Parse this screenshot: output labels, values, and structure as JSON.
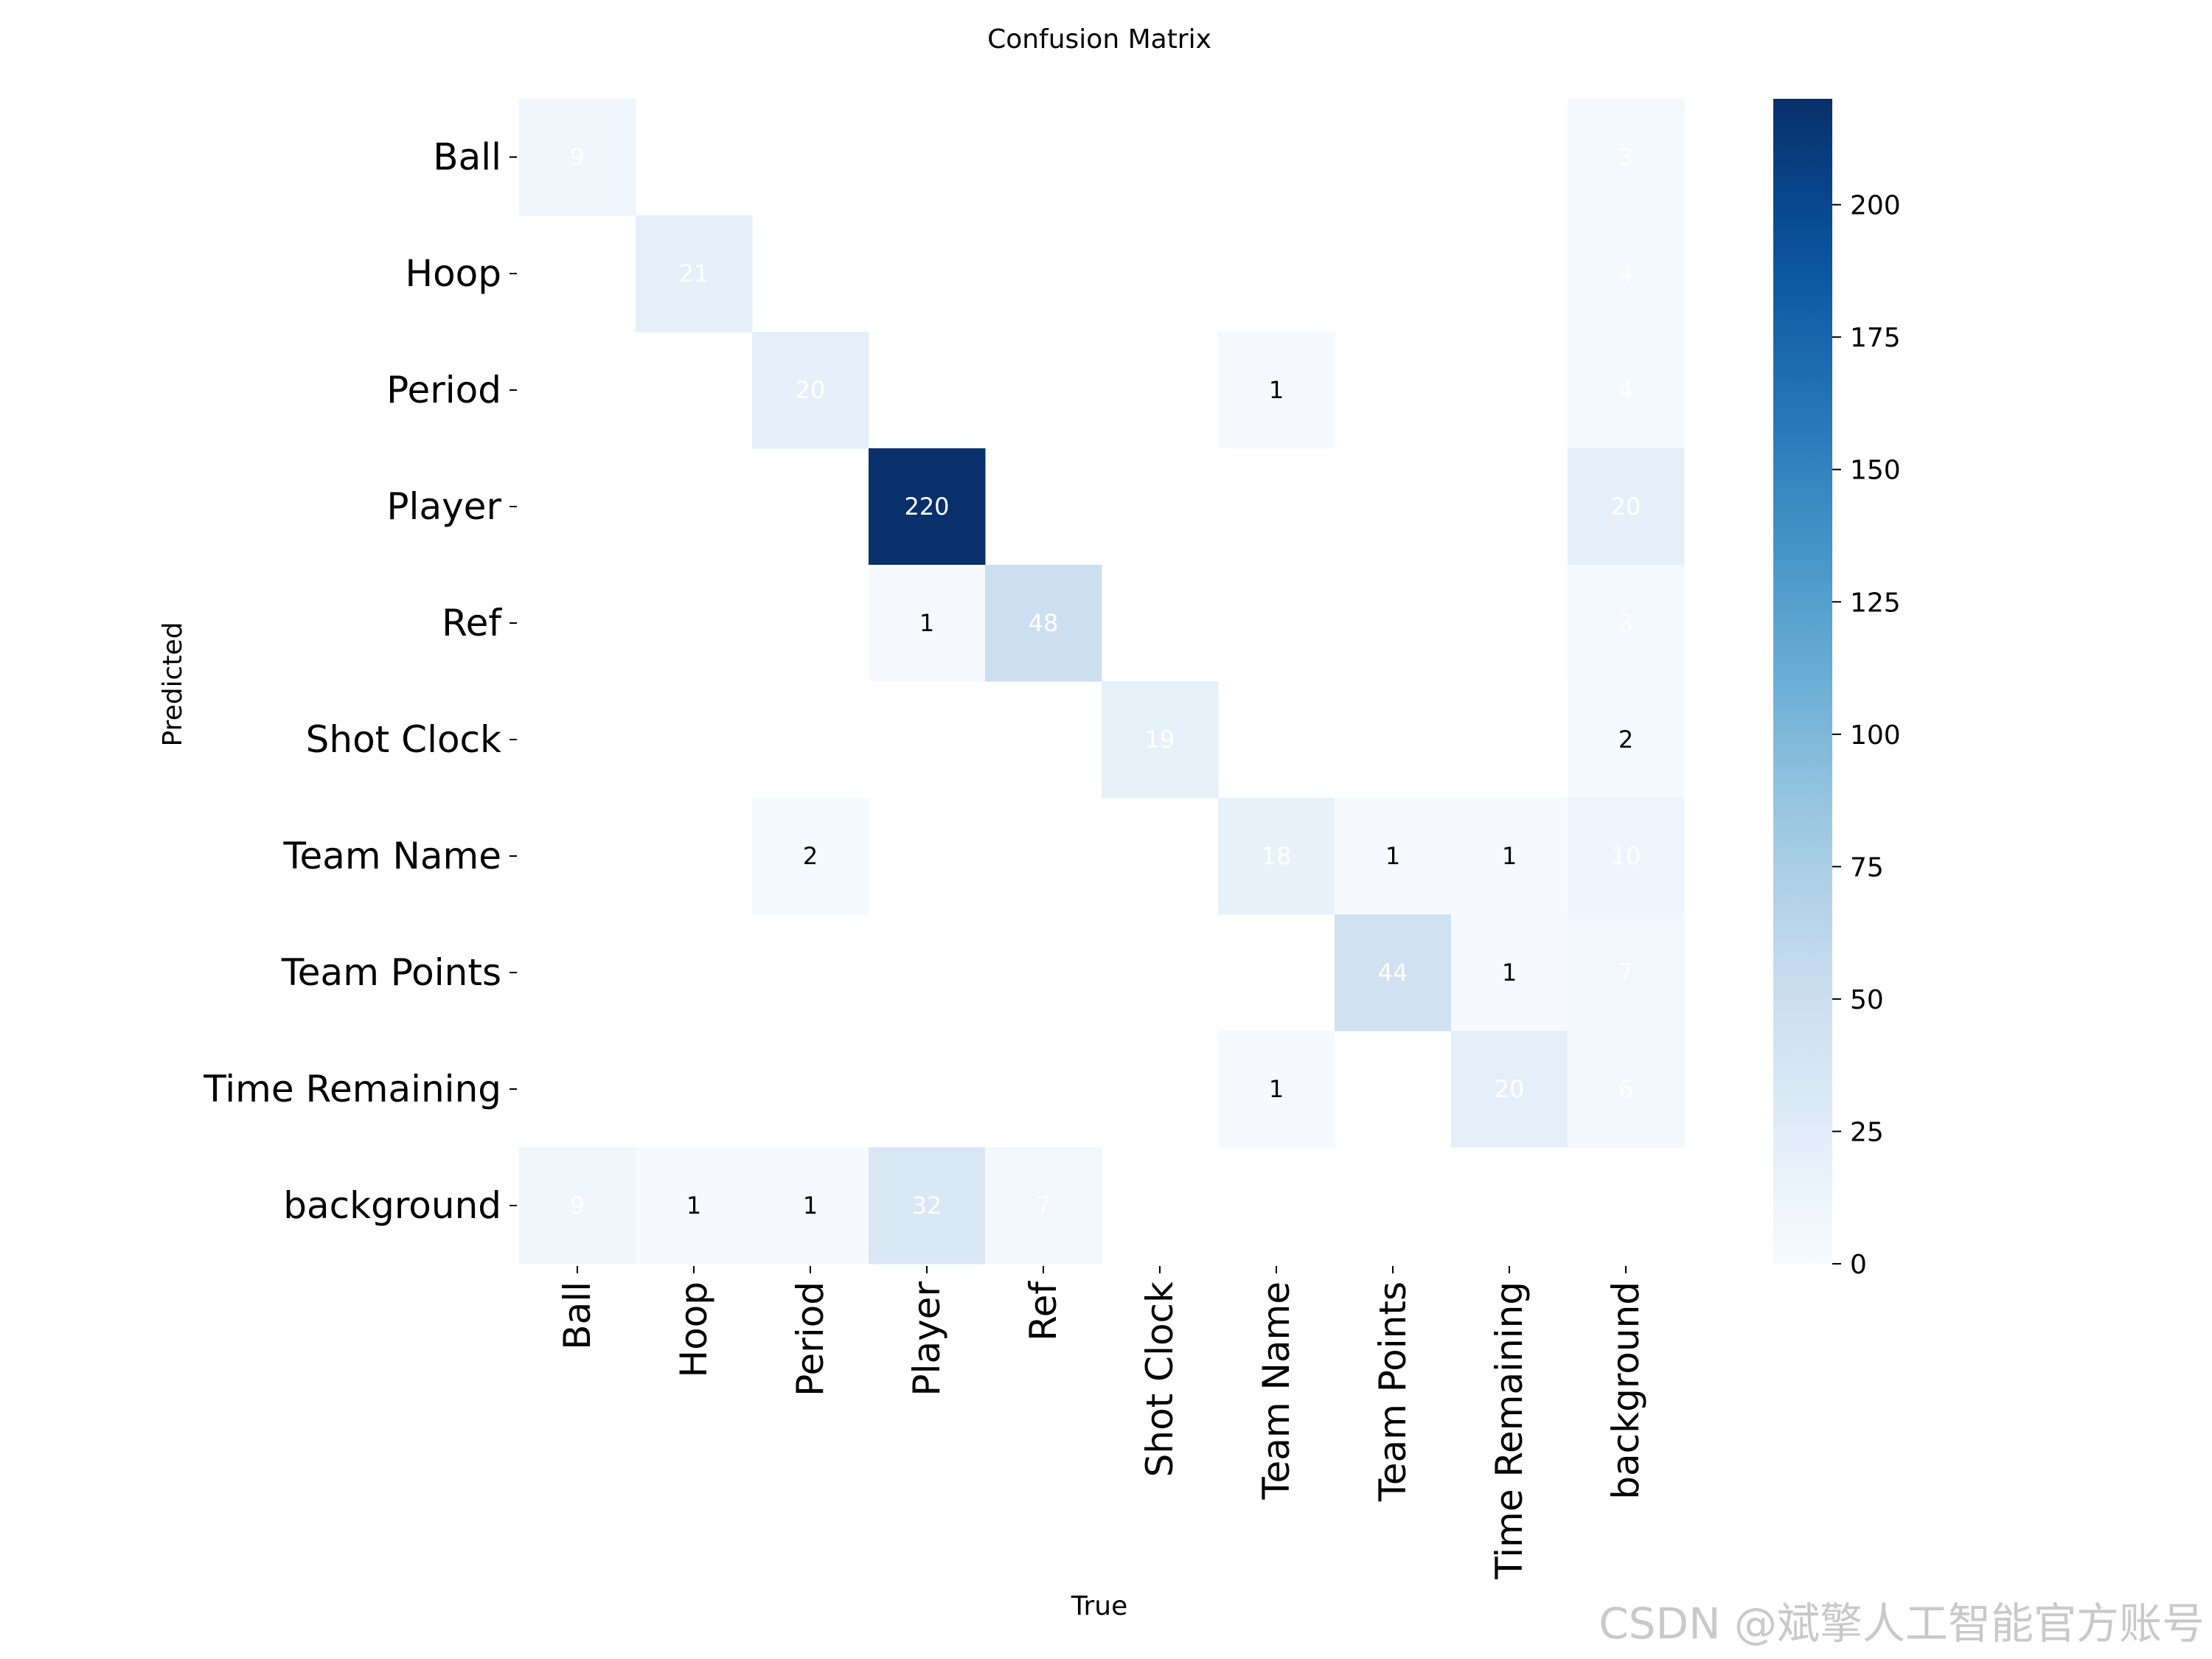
{
  "chart_data": {
    "type": "heatmap",
    "title": "Confusion Matrix",
    "xlabel": "True",
    "ylabel": "Predicted",
    "x_categories": [
      "Ball",
      "Hoop",
      "Period",
      "Player",
      "Ref",
      "Shot Clock",
      "Team Name",
      "Team Points",
      "Time Remaining",
      "background"
    ],
    "y_categories": [
      "Ball",
      "Hoop",
      "Period",
      "Player",
      "Ref",
      "Shot Clock",
      "Team Name",
      "Team Points",
      "Time Remaining",
      "background"
    ],
    "matrix": [
      [
        9,
        0,
        0,
        0,
        0,
        0,
        0,
        0,
        0,
        3
      ],
      [
        0,
        21,
        0,
        0,
        0,
        0,
        0,
        0,
        0,
        4
      ],
      [
        0,
        0,
        20,
        0,
        0,
        0,
        1,
        0,
        0,
        4
      ],
      [
        0,
        0,
        0,
        220,
        0,
        0,
        0,
        0,
        0,
        20
      ],
      [
        0,
        0,
        0,
        1,
        48,
        0,
        0,
        0,
        0,
        3
      ],
      [
        0,
        0,
        0,
        0,
        0,
        19,
        0,
        0,
        0,
        2
      ],
      [
        0,
        0,
        2,
        0,
        0,
        0,
        18,
        1,
        1,
        10
      ],
      [
        0,
        0,
        0,
        0,
        0,
        0,
        0,
        44,
        1,
        7
      ],
      [
        0,
        0,
        0,
        0,
        0,
        0,
        1,
        0,
        20,
        6
      ],
      [
        9,
        1,
        1,
        32,
        7,
        0,
        0,
        0,
        0,
        0
      ]
    ],
    "colorbar": {
      "ticks": [
        0,
        25,
        50,
        75,
        100,
        125,
        150,
        175,
        200
      ],
      "range": [
        0,
        220
      ],
      "colormap": "Blues"
    },
    "grid": false,
    "legend": "colorbar-right"
  },
  "watermark": "CSDN @斌擎人工智能官方账号"
}
